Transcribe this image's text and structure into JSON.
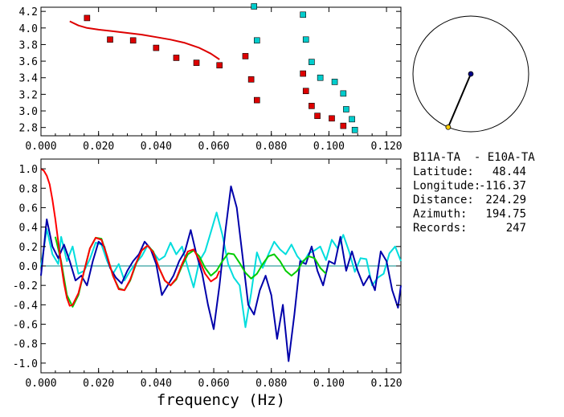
{
  "chart_data": [
    {
      "type": "scatter",
      "xlim": [
        0.0,
        0.125
      ],
      "ylim": [
        2.7,
        4.25
      ],
      "x_ticks": [
        "0.000",
        "0.020",
        "0.040",
        "0.060",
        "0.080",
        "0.100",
        "0.120"
      ],
      "y_ticks": [
        "2.8",
        "3.0",
        "3.2",
        "3.4",
        "3.6",
        "3.8",
        "4.0",
        "4.2"
      ],
      "grid": false,
      "series": [
        {
          "color": "#dd0000",
          "kind": "line",
          "points": [
            [
              0.01,
              4.08
            ],
            [
              0.013,
              4.03
            ],
            [
              0.016,
              4.0
            ],
            [
              0.02,
              3.98
            ],
            [
              0.025,
              3.96
            ],
            [
              0.03,
              3.94
            ],
            [
              0.035,
              3.92
            ],
            [
              0.04,
              3.89
            ],
            [
              0.045,
              3.86
            ],
            [
              0.05,
              3.82
            ],
            [
              0.055,
              3.76
            ],
            [
              0.059,
              3.69
            ],
            [
              0.062,
              3.62
            ]
          ]
        },
        {
          "color": "#dd0000",
          "kind": "square_markers",
          "points": [
            [
              0.016,
              4.12
            ],
            [
              0.024,
              3.86
            ],
            [
              0.032,
              3.85
            ],
            [
              0.04,
              3.76
            ],
            [
              0.047,
              3.64
            ],
            [
              0.054,
              3.58
            ],
            [
              0.062,
              3.55
            ],
            [
              0.071,
              3.66
            ],
            [
              0.073,
              3.38
            ],
            [
              0.075,
              3.13
            ],
            [
              0.091,
              3.45
            ],
            [
              0.092,
              3.24
            ],
            [
              0.094,
              3.06
            ],
            [
              0.096,
              2.94
            ],
            [
              0.101,
              2.91
            ],
            [
              0.105,
              2.82
            ]
          ]
        },
        {
          "color": "#00cccc",
          "kind": "square_markers",
          "points": [
            [
              0.074,
              4.26
            ],
            [
              0.075,
              3.85
            ],
            [
              0.091,
              4.16
            ],
            [
              0.092,
              3.86
            ],
            [
              0.094,
              3.59
            ],
            [
              0.097,
              3.4
            ],
            [
              0.102,
              3.35
            ],
            [
              0.105,
              3.21
            ],
            [
              0.106,
              3.02
            ],
            [
              0.108,
              2.9
            ],
            [
              0.109,
              2.77
            ]
          ]
        }
      ]
    },
    {
      "type": "line",
      "xlabel": "frequency (Hz)",
      "xlim": [
        0.0,
        0.125
      ],
      "ylim": [
        -1.1,
        1.1
      ],
      "x_ticks": [
        "0.000",
        "0.020",
        "0.040",
        "0.060",
        "0.080",
        "0.100",
        "0.120"
      ],
      "y_ticks": [
        "1.0",
        "0.8",
        "0.6",
        "0.4",
        "0.2",
        "0.0",
        "-0.2",
        "-0.4",
        "-0.6",
        "-0.8",
        "-1.0"
      ],
      "zero_line_color": "#008888",
      "series": [
        {
          "color": "#00dddd",
          "points": [
            [
              0.0,
              -0.01
            ],
            [
              0.002,
              0.38
            ],
            [
              0.004,
              0.12
            ],
            [
              0.006,
              0.02
            ],
            [
              0.007,
              0.3
            ],
            [
              0.009,
              0.05
            ],
            [
              0.011,
              0.2
            ],
            [
              0.013,
              -0.08
            ],
            [
              0.015,
              -0.05
            ],
            [
              0.017,
              0.07
            ],
            [
              0.019,
              0.24
            ],
            [
              0.021,
              0.22
            ],
            [
              0.023,
              0.05
            ],
            [
              0.025,
              -0.08
            ],
            [
              0.027,
              0.02
            ],
            [
              0.029,
              -0.15
            ],
            [
              0.031,
              -0.05
            ],
            [
              0.033,
              0.03
            ],
            [
              0.035,
              0.1
            ],
            [
              0.037,
              0.21
            ],
            [
              0.039,
              0.14
            ],
            [
              0.041,
              0.06
            ],
            [
              0.043,
              0.1
            ],
            [
              0.045,
              0.24
            ],
            [
              0.047,
              0.12
            ],
            [
              0.049,
              0.2
            ],
            [
              0.051,
              -0.02
            ],
            [
              0.053,
              -0.22
            ],
            [
              0.055,
              0.05
            ],
            [
              0.057,
              0.15
            ],
            [
              0.059,
              0.35
            ],
            [
              0.061,
              0.55
            ],
            [
              0.063,
              0.32
            ],
            [
              0.065,
              0.02
            ],
            [
              0.067,
              -0.12
            ],
            [
              0.069,
              -0.2
            ],
            [
              0.071,
              -0.63
            ],
            [
              0.073,
              -0.28
            ],
            [
              0.075,
              0.14
            ],
            [
              0.077,
              -0.02
            ],
            [
              0.079,
              0.12
            ],
            [
              0.081,
              0.25
            ],
            [
              0.083,
              0.17
            ],
            [
              0.085,
              0.12
            ],
            [
              0.087,
              0.22
            ],
            [
              0.089,
              0.1
            ],
            [
              0.091,
              0.03
            ],
            [
              0.093,
              0.13
            ],
            [
              0.095,
              0.16
            ],
            [
              0.097,
              0.2
            ],
            [
              0.099,
              0.06
            ],
            [
              0.101,
              0.27
            ],
            [
              0.103,
              0.18
            ],
            [
              0.105,
              0.32
            ],
            [
              0.107,
              0.15
            ],
            [
              0.109,
              -0.06
            ],
            [
              0.111,
              0.08
            ],
            [
              0.113,
              0.07
            ],
            [
              0.115,
              -0.2
            ],
            [
              0.117,
              -0.12
            ],
            [
              0.119,
              -0.08
            ],
            [
              0.121,
              0.13
            ],
            [
              0.123,
              0.2
            ],
            [
              0.125,
              0.05
            ]
          ]
        },
        {
          "color": "#0000aa",
          "points": [
            [
              0.0,
              -0.1
            ],
            [
              0.002,
              0.48
            ],
            [
              0.004,
              0.2
            ],
            [
              0.006,
              0.08
            ],
            [
              0.008,
              0.22
            ],
            [
              0.01,
              0.05
            ],
            [
              0.012,
              -0.15
            ],
            [
              0.014,
              -0.1
            ],
            [
              0.016,
              -0.2
            ],
            [
              0.018,
              0.05
            ],
            [
              0.02,
              0.25
            ],
            [
              0.022,
              0.2
            ],
            [
              0.024,
              -0.02
            ],
            [
              0.026,
              -0.12
            ],
            [
              0.028,
              -0.18
            ],
            [
              0.03,
              -0.05
            ],
            [
              0.032,
              0.05
            ],
            [
              0.034,
              0.12
            ],
            [
              0.036,
              0.25
            ],
            [
              0.038,
              0.18
            ],
            [
              0.04,
              0.02
            ],
            [
              0.042,
              -0.3
            ],
            [
              0.044,
              -0.2
            ],
            [
              0.046,
              -0.1
            ],
            [
              0.048,
              0.05
            ],
            [
              0.05,
              0.15
            ],
            [
              0.052,
              0.37
            ],
            [
              0.054,
              0.12
            ],
            [
              0.056,
              -0.08
            ],
            [
              0.058,
              -0.4
            ],
            [
              0.06,
              -0.65
            ],
            [
              0.062,
              -0.2
            ],
            [
              0.064,
              0.35
            ],
            [
              0.066,
              0.82
            ],
            [
              0.068,
              0.6
            ],
            [
              0.07,
              0.1
            ],
            [
              0.072,
              -0.4
            ],
            [
              0.074,
              -0.5
            ],
            [
              0.076,
              -0.25
            ],
            [
              0.078,
              -0.1
            ],
            [
              0.08,
              -0.3
            ],
            [
              0.082,
              -0.75
            ],
            [
              0.084,
              -0.4
            ],
            [
              0.086,
              -0.98
            ],
            [
              0.088,
              -0.5
            ],
            [
              0.09,
              0.05
            ],
            [
              0.092,
              0.02
            ],
            [
              0.094,
              0.2
            ],
            [
              0.096,
              -0.05
            ],
            [
              0.098,
              -0.2
            ],
            [
              0.1,
              0.05
            ],
            [
              0.102,
              0.02
            ],
            [
              0.104,
              0.3
            ],
            [
              0.106,
              -0.05
            ],
            [
              0.108,
              0.15
            ],
            [
              0.11,
              -0.05
            ],
            [
              0.112,
              -0.2
            ],
            [
              0.114,
              -0.1
            ],
            [
              0.116,
              -0.25
            ],
            [
              0.118,
              0.15
            ],
            [
              0.12,
              0.05
            ],
            [
              0.122,
              -0.25
            ],
            [
              0.124,
              -0.43
            ],
            [
              0.125,
              -0.2
            ]
          ]
        },
        {
          "color": "#00cc00",
          "points": [
            [
              0.005,
              0.3
            ],
            [
              0.007,
              0.05
            ],
            [
              0.009,
              -0.3
            ],
            [
              0.011,
              -0.42
            ],
            [
              0.013,
              -0.3
            ],
            [
              0.015,
              -0.05
            ],
            [
              0.017,
              0.18
            ],
            [
              0.019,
              0.29
            ],
            [
              0.021,
              0.28
            ],
            [
              0.023,
              0.1
            ],
            [
              0.025,
              -0.1
            ],
            [
              0.027,
              -0.23
            ],
            [
              0.029,
              -0.25
            ],
            [
              0.031,
              -0.15
            ],
            [
              0.033,
              0.02
            ],
            [
              0.035,
              0.16
            ],
            [
              0.037,
              0.21
            ],
            [
              0.039,
              0.15
            ],
            [
              0.041,
              -0.02
            ],
            [
              0.043,
              -0.15
            ],
            [
              0.045,
              -0.2
            ],
            [
              0.047,
              -0.14
            ],
            [
              0.049,
              0.0
            ],
            [
              0.051,
              0.12
            ],
            [
              0.053,
              0.16
            ],
            [
              0.055,
              0.1
            ],
            [
              0.057,
              -0.02
            ],
            [
              0.059,
              -0.1
            ],
            [
              0.061,
              -0.05
            ],
            [
              0.063,
              0.05
            ],
            [
              0.065,
              0.13
            ],
            [
              0.067,
              0.12
            ],
            [
              0.069,
              0.03
            ],
            [
              0.071,
              -0.07
            ],
            [
              0.073,
              -0.13
            ],
            [
              0.075,
              -0.08
            ],
            [
              0.077,
              0.02
            ],
            [
              0.079,
              0.1
            ],
            [
              0.081,
              0.12
            ],
            [
              0.083,
              0.05
            ],
            [
              0.085,
              -0.05
            ],
            [
              0.087,
              -0.1
            ],
            [
              0.089,
              -0.05
            ],
            [
              0.091,
              0.05
            ],
            [
              0.093,
              0.1
            ],
            [
              0.095,
              0.08
            ],
            [
              0.097,
              -0.02
            ],
            [
              0.099,
              -0.08
            ]
          ]
        },
        {
          "color": "#ff0000",
          "points": [
            [
              0.0,
              1.0
            ],
            [
              0.001,
              0.98
            ],
            [
              0.002,
              0.93
            ],
            [
              0.003,
              0.84
            ],
            [
              0.004,
              0.68
            ],
            [
              0.005,
              0.48
            ],
            [
              0.006,
              0.25
            ],
            [
              0.007,
              0.02
            ],
            [
              0.008,
              -0.18
            ],
            [
              0.009,
              -0.33
            ],
            [
              0.01,
              -0.41
            ],
            [
              0.011,
              -0.4
            ],
            [
              0.013,
              -0.28
            ],
            [
              0.015,
              -0.05
            ],
            [
              0.017,
              0.18
            ],
            [
              0.019,
              0.29
            ],
            [
              0.021,
              0.27
            ],
            [
              0.023,
              0.1
            ],
            [
              0.025,
              -0.1
            ],
            [
              0.027,
              -0.24
            ],
            [
              0.029,
              -0.25
            ],
            [
              0.031,
              -0.14
            ],
            [
              0.033,
              0.03
            ],
            [
              0.035,
              0.16
            ],
            [
              0.037,
              0.21
            ],
            [
              0.039,
              0.14
            ],
            [
              0.041,
              -0.02
            ],
            [
              0.043,
              -0.15
            ],
            [
              0.045,
              -0.2
            ],
            [
              0.047,
              -0.13
            ],
            [
              0.049,
              0.02
            ],
            [
              0.051,
              0.15
            ],
            [
              0.053,
              0.17
            ],
            [
              0.055,
              0.06
            ],
            [
              0.057,
              -0.08
            ],
            [
              0.059,
              -0.16
            ],
            [
              0.061,
              -0.12
            ],
            [
              0.062,
              -0.05
            ]
          ]
        }
      ]
    }
  ],
  "station_map": {
    "line_color": "#000000",
    "center_marker_color": "#000088",
    "edge_marker_color": "#ffcc00",
    "azimuth_deg": 194.75,
    "edge_point_angle_deg": 247
  },
  "info": {
    "pair": "B11A-TA  - E10A-TA",
    "rows": [
      {
        "label": "Latitude:",
        "value": "48.44"
      },
      {
        "label": "Longitude:",
        "value": "-116.37"
      },
      {
        "label": "Distance:",
        "value": "224.29"
      },
      {
        "label": "Azimuth:",
        "value": "194.75"
      },
      {
        "label": "Records:",
        "value": "247"
      }
    ]
  }
}
